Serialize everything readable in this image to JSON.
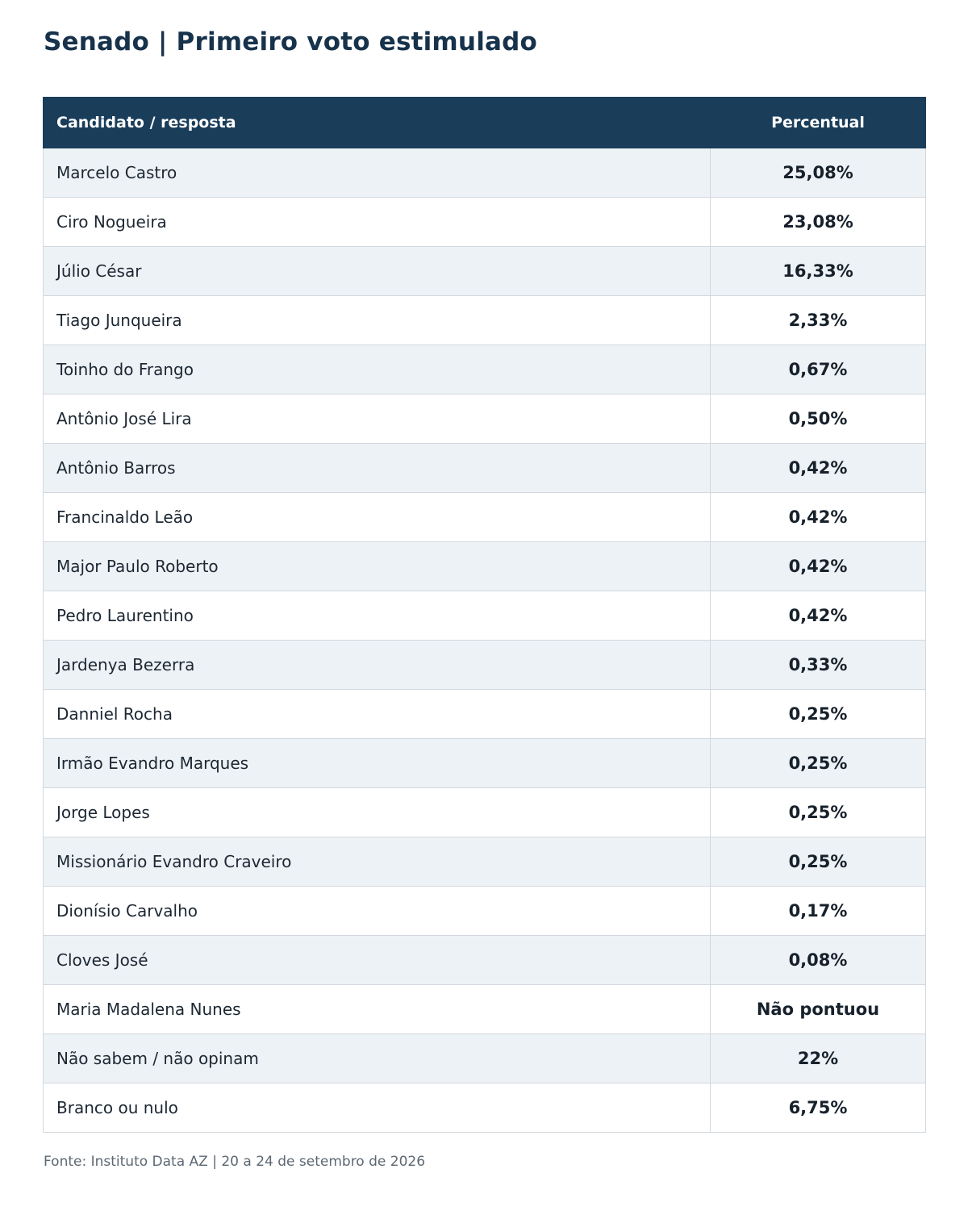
{
  "title": "Senado | Primeiro voto estimulado",
  "table": {
    "headers": {
      "name": "Candidato / resposta",
      "percent": "Percentual"
    },
    "rows": [
      {
        "name": "Marcelo Castro",
        "percent": "25,08%"
      },
      {
        "name": "Ciro Nogueira",
        "percent": "23,08%"
      },
      {
        "name": "Júlio César",
        "percent": "16,33%"
      },
      {
        "name": "Tiago Junqueira",
        "percent": "2,33%"
      },
      {
        "name": "Toinho do Frango",
        "percent": "0,67%"
      },
      {
        "name": "Antônio José Lira",
        "percent": "0,50%"
      },
      {
        "name": "Antônio Barros",
        "percent": "0,42%"
      },
      {
        "name": "Francinaldo Leão",
        "percent": "0,42%"
      },
      {
        "name": "Major Paulo Roberto",
        "percent": "0,42%"
      },
      {
        "name": "Pedro Laurentino",
        "percent": "0,42%"
      },
      {
        "name": "Jardenya Bezerra",
        "percent": "0,33%"
      },
      {
        "name": "Danniel Rocha",
        "percent": "0,25%"
      },
      {
        "name": "Irmão Evandro Marques",
        "percent": "0,25%"
      },
      {
        "name": "Jorge Lopes",
        "percent": "0,25%"
      },
      {
        "name": "Missionário Evandro Craveiro",
        "percent": "0,25%"
      },
      {
        "name": "Dionísio Carvalho",
        "percent": "0,17%"
      },
      {
        "name": "Cloves José",
        "percent": "0,08%"
      },
      {
        "name": "Maria Madalena Nunes",
        "percent": "Não pontuou"
      },
      {
        "name": "Não sabem / não opinam",
        "percent": "22%"
      },
      {
        "name": "Branco ou nulo",
        "percent": "6,75%"
      }
    ]
  },
  "source": "Fonte: Instituto Data AZ | 20 a 24 de setembro de 2026",
  "colors": {
    "title": "#17324b",
    "header_bg": "#1a3d5a",
    "stripe_bg": "#edf2f6",
    "border": "#d3d8de"
  }
}
